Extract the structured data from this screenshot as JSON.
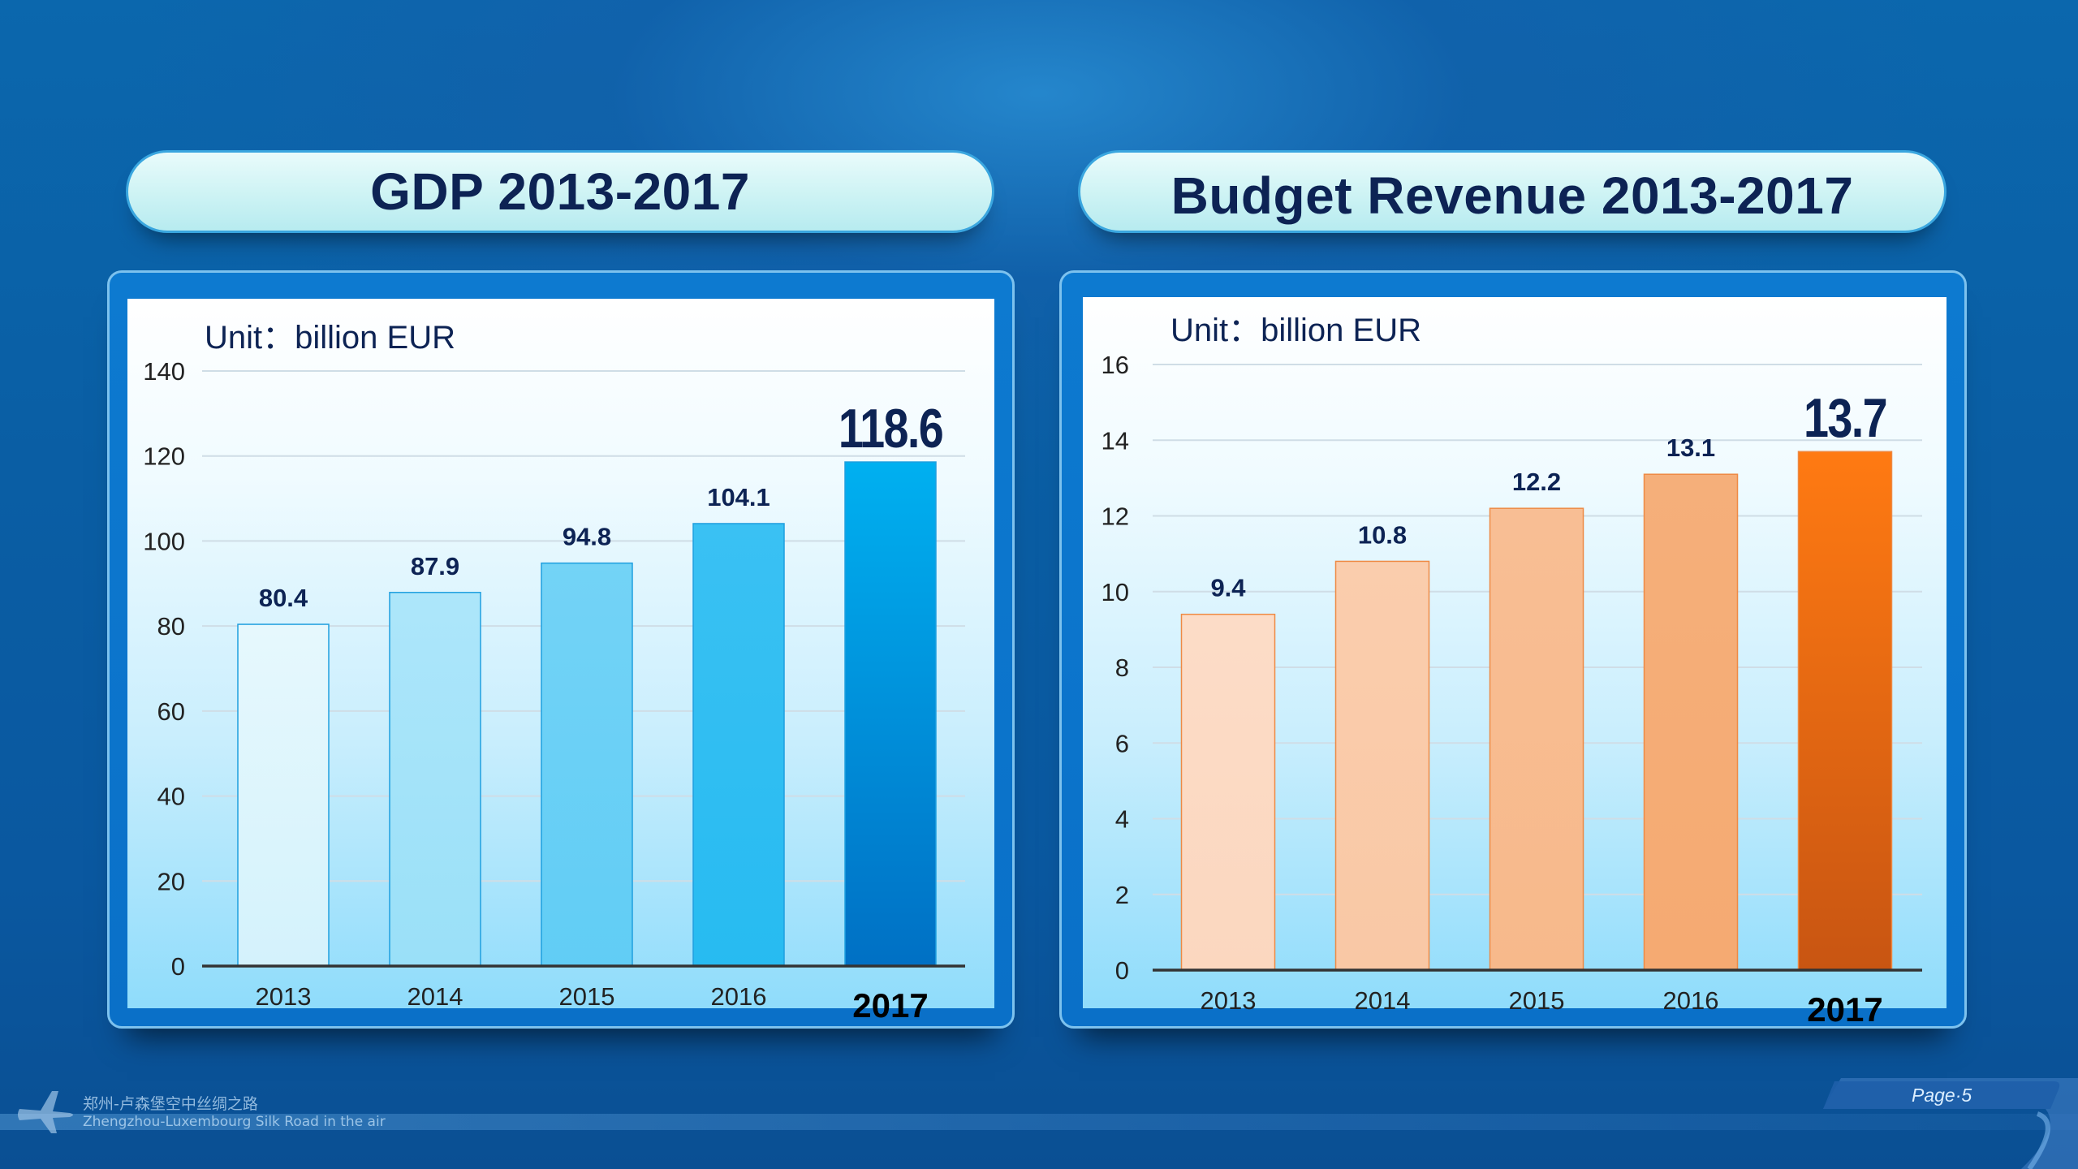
{
  "slide": {
    "page_label": "Page·5",
    "footer_cn": "郑州-卢森堡空中丝绸之路",
    "footer_en": "Zhengzhou-Luxembourg Silk Road in the air",
    "plane_icon": "airplane-icon"
  },
  "colors": {
    "title_text": "#0d2354",
    "gdp_bar_light": "#e6f8fd",
    "gdp_bar_dark": "#0070c4",
    "budget_bar_light": "#fcdcc7",
    "budget_bar_dark": "#ff7a12"
  },
  "chart_data": [
    {
      "type": "bar",
      "title": "GDP 2013-2017",
      "unit_label": "Unit：billion EUR",
      "categories": [
        "2013",
        "2014",
        "2015",
        "2016",
        "2017"
      ],
      "values": [
        80.4,
        87.9,
        94.8,
        104.1,
        118.6
      ],
      "value_labels": [
        "80.4",
        "87.9",
        "94.8",
        "104.1",
        "118.6"
      ],
      "highlight_index": 4,
      "ylim": [
        0,
        140
      ],
      "yticks": [
        0,
        20,
        40,
        60,
        80,
        100,
        120,
        140
      ],
      "grid": true,
      "legend": "none"
    },
    {
      "type": "bar",
      "title": "Budget Revenue 2013-2017",
      "unit_label": "Unit：billion EUR",
      "categories": [
        "2013",
        "2014",
        "2015",
        "2016",
        "2017"
      ],
      "values": [
        9.4,
        10.8,
        12.2,
        13.1,
        13.7
      ],
      "value_labels": [
        "9.4",
        "10.8",
        "12.2",
        "13.1",
        "13.7"
      ],
      "highlight_index": 4,
      "ylim": [
        0,
        16
      ],
      "yticks": [
        0,
        2,
        4,
        6,
        8,
        10,
        12,
        14,
        16
      ],
      "grid": true,
      "legend": "none"
    }
  ]
}
